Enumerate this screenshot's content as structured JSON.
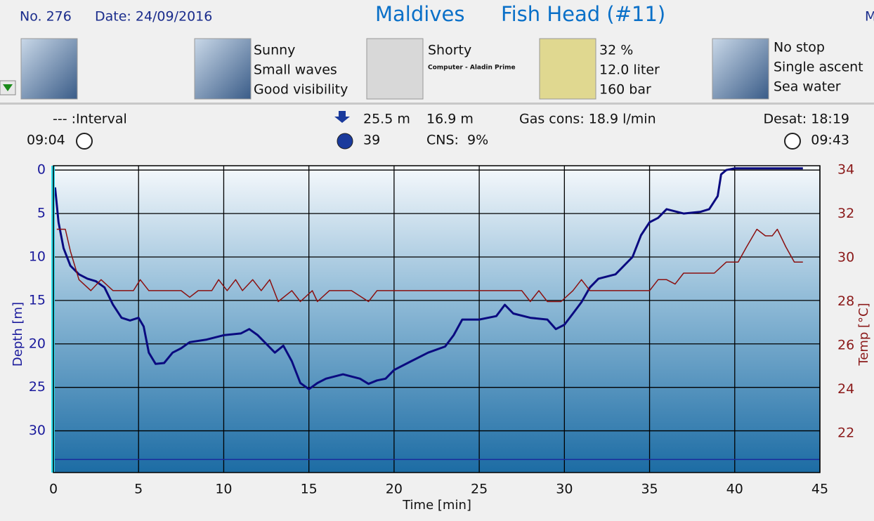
{
  "header": {
    "number": "No. 276",
    "date": "Date: 24/09/2016",
    "location": "Maldives",
    "site": "Fish Head (#11)",
    "extra": "M"
  },
  "conditions": {
    "weather": [
      "Sunny",
      "Small waves",
      "Good visibility"
    ],
    "equipment": [
      "Shorty",
      "Computer - Aladin Prime"
    ],
    "gas": [
      "32 %",
      "12.0 liter",
      "160 bar"
    ],
    "dive_type": [
      "No stop",
      "Single ascent",
      "Sea water"
    ]
  },
  "stats": {
    "interval": "--- :Interval",
    "start_time": "09:04",
    "max_depth": "25.5 m",
    "duration": "39",
    "avg_depth": "16.9 m",
    "cns": "CNS:  9%",
    "gas_cons": "Gas cons: 18.9 l/min",
    "desat": "Desat: 18:19",
    "end_time": "09:43"
  },
  "chart_data": {
    "type": "line",
    "x_label": "Time [min]",
    "y_label": "Depth [m]",
    "y2_label": "Temp [°C]",
    "xlim": [
      0,
      45
    ],
    "xticks": [
      0,
      5,
      10,
      15,
      20,
      25,
      30,
      35,
      40,
      45
    ],
    "ylim": [
      -0.5,
      34.8
    ],
    "y_inverted": true,
    "yticks": [
      0,
      5,
      10,
      15,
      20,
      25,
      30
    ],
    "y2lim": [
      20.2,
      34.2
    ],
    "y2ticks": [
      22,
      24,
      26,
      28,
      30,
      32,
      34
    ],
    "grid": true,
    "alarm_depth": 33.3,
    "series": [
      {
        "name": "Depth [m]",
        "color": "#0a0a80",
        "x": [
          0.1,
          0.3,
          0.6,
          1,
          1.5,
          2,
          2.5,
          3,
          3.5,
          4,
          4.5,
          5,
          5.3,
          5.6,
          6,
          6.5,
          7,
          7.5,
          8,
          9,
          10,
          11,
          11.5,
          12,
          12.5,
          13,
          13.5,
          14,
          14.5,
          15,
          15.5,
          16,
          17,
          18,
          18.5,
          19,
          19.5,
          20,
          21,
          22,
          23,
          23.5,
          24,
          25,
          26,
          26.5,
          27,
          28,
          29,
          29.5,
          30,
          30.5,
          31,
          31.5,
          32,
          33,
          34,
          34.5,
          35,
          35.5,
          36,
          37,
          38,
          38.5,
          39,
          39.2,
          39.5,
          40,
          42,
          44
        ],
        "values": [
          2,
          6,
          9,
          11,
          12,
          12.5,
          12.8,
          13.5,
          15.5,
          17,
          17.3,
          17,
          18,
          21,
          22.3,
          22.2,
          21,
          20.5,
          19.8,
          19.5,
          19,
          18.8,
          18.3,
          19,
          20,
          21,
          20.2,
          22,
          24.5,
          25.2,
          24.5,
          24,
          23.5,
          24,
          24.6,
          24.2,
          24,
          23,
          22,
          21,
          20.3,
          19,
          17.2,
          17.2,
          16.8,
          15.5,
          16.5,
          17,
          17.2,
          18.3,
          17.8,
          16.5,
          15.2,
          13.5,
          12.5,
          12,
          10,
          7.5,
          6,
          5.5,
          4.5,
          5,
          4.8,
          4.5,
          3,
          0.5,
          0,
          -0.2,
          -0.2,
          -0.2
        ]
      },
      {
        "name": "Temp [°C]",
        "color": "#8b1010",
        "axis": "y2",
        "x": [
          0.2,
          0.7,
          1,
          1.5,
          2.2,
          2.8,
          3.5,
          4.7,
          5.1,
          5.6,
          7.5,
          8,
          8.5,
          9.3,
          9.7,
          10.2,
          10.7,
          11.1,
          11.7,
          12.2,
          12.7,
          13.2,
          14,
          14.5,
          15.2,
          15.5,
          16.2,
          17.5,
          18.5,
          19,
          27.5,
          28,
          28.5,
          29,
          29.8,
          30.5,
          31,
          31.5,
          35,
          35.5,
          36,
          36.5,
          37,
          38.8,
          39.5,
          40.2,
          40.7,
          41.3,
          41.8,
          42.2,
          42.5,
          43,
          43.5,
          44
        ],
        "values": [
          31.3,
          31.3,
          30.3,
          29,
          28.5,
          29,
          28.5,
          28.5,
          29,
          28.5,
          28.5,
          28.2,
          28.5,
          28.5,
          29,
          28.5,
          29,
          28.5,
          29,
          28.5,
          29,
          28,
          28.5,
          28,
          28.5,
          28,
          28.5,
          28.5,
          28,
          28.5,
          28.5,
          28,
          28.5,
          28,
          28,
          28.5,
          29,
          28.5,
          28.5,
          29,
          29,
          28.8,
          29.3,
          29.3,
          29.8,
          29.8,
          30.5,
          31.3,
          31,
          31,
          31.3,
          30.5,
          29.8,
          29.8
        ]
      }
    ]
  }
}
